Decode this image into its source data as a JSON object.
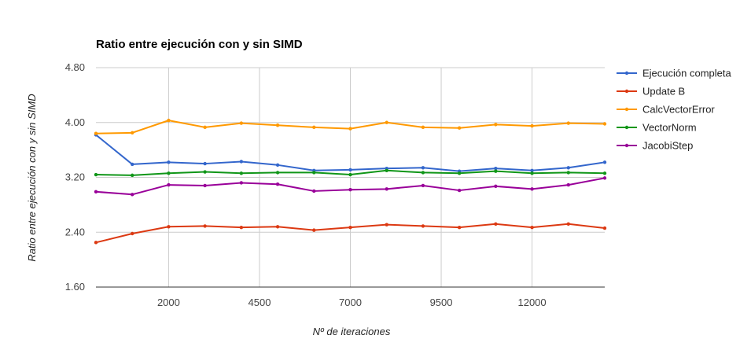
{
  "chart_data": {
    "type": "line",
    "title": "Ratio entre ejecución con y sin SIMD",
    "xlabel": "Nº de iteraciones",
    "ylabel": "Ratio entre ejecución con y sin SIMD",
    "x": [
      0,
      1000,
      2000,
      3000,
      4000,
      5000,
      6000,
      7000,
      8000,
      9000,
      10000,
      11000,
      12000,
      13000,
      14000
    ],
    "xlim": [
      0,
      14000
    ],
    "ylim": [
      1.6,
      4.8
    ],
    "x_ticks": [
      "2000",
      "4500",
      "7000",
      "9500",
      "12000"
    ],
    "y_ticks": [
      "4.80",
      "4.00",
      "3.20",
      "2.40",
      "1.60"
    ],
    "grid": true,
    "legend_position": "right",
    "series": [
      {
        "name": "Ejecución completa",
        "color": "#3366cc",
        "values": [
          3.82,
          3.39,
          3.42,
          3.4,
          3.43,
          3.38,
          3.3,
          3.31,
          3.33,
          3.34,
          3.29,
          3.33,
          3.3,
          3.34,
          3.42
        ]
      },
      {
        "name": "Update B",
        "color": "#dc3912",
        "values": [
          2.25,
          2.38,
          2.48,
          2.49,
          2.47,
          2.48,
          2.43,
          2.47,
          2.51,
          2.49,
          2.47,
          2.52,
          2.47,
          2.52,
          2.46
        ]
      },
      {
        "name": "CalcVectorError",
        "color": "#ff9900",
        "values": [
          3.84,
          3.85,
          4.03,
          3.93,
          3.99,
          3.96,
          3.93,
          3.91,
          4.0,
          3.93,
          3.92,
          3.97,
          3.95,
          3.99,
          3.98
        ]
      },
      {
        "name": "VectorNorm",
        "color": "#109618",
        "values": [
          3.24,
          3.23,
          3.26,
          3.28,
          3.26,
          3.27,
          3.27,
          3.24,
          3.3,
          3.27,
          3.26,
          3.29,
          3.26,
          3.27,
          3.26
        ]
      },
      {
        "name": "JacobiStep",
        "color": "#990099",
        "values": [
          2.99,
          2.95,
          3.09,
          3.08,
          3.12,
          3.1,
          3.0,
          3.02,
          3.03,
          3.08,
          3.01,
          3.07,
          3.03,
          3.09,
          3.19
        ]
      }
    ]
  }
}
